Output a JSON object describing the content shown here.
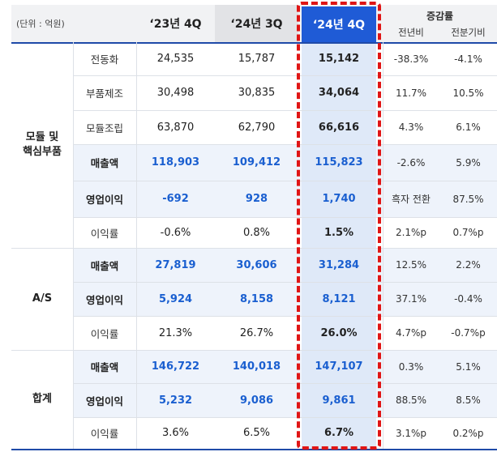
{
  "header": {
    "unit": "(단위 : 억원)",
    "col1": "‘23년 4Q",
    "col2": "‘24년 3Q",
    "col3": "‘24년 4Q",
    "change": "증감률",
    "yoy": "전년비",
    "qoq": "전분기비"
  },
  "groups": [
    {
      "name_line1": "모듈 및",
      "name_line2": "핵심부품",
      "rows": [
        {
          "label": "전동화",
          "v1": "24,535",
          "v2": "15,787",
          "v3": "15,142",
          "yoy": "-38.3%",
          "qoq": "-4.1%"
        },
        {
          "label": "부품제조",
          "v1": "30,498",
          "v2": "30,835",
          "v3": "34,064",
          "yoy": "11.7%",
          "qoq": "10.5%"
        },
        {
          "label": "모듈조립",
          "v1": "63,870",
          "v2": "62,790",
          "v3": "66,616",
          "yoy": "4.3%",
          "qoq": "6.1%"
        },
        {
          "label": "매출액",
          "v1": "118,903",
          "v2": "109,412",
          "v3": "115,823",
          "yoy": "-2.6%",
          "qoq": "5.9%"
        },
        {
          "label": "영업이익",
          "v1": "-692",
          "v2": "928",
          "v3": "1,740",
          "yoy": "흑자 전환",
          "qoq": "87.5%"
        },
        {
          "label": "이익률",
          "v1": "-0.6%",
          "v2": "0.8%",
          "v3": "1.5%",
          "yoy": "2.1%p",
          "qoq": "0.7%p"
        }
      ]
    },
    {
      "name_line1": "A/S",
      "name_line2": "",
      "rows": [
        {
          "label": "매출액",
          "v1": "27,819",
          "v2": "30,606",
          "v3": "31,284",
          "yoy": "12.5%",
          "qoq": "2.2%"
        },
        {
          "label": "영업이익",
          "v1": "5,924",
          "v2": "8,158",
          "v3": "8,121",
          "yoy": "37.1%",
          "qoq": "-0.4%"
        },
        {
          "label": "이익률",
          "v1": "21.3%",
          "v2": "26.7%",
          "v3": "26.0%",
          "yoy": "4.7%p",
          "qoq": "-0.7%p"
        }
      ]
    },
    {
      "name_line1": "합계",
      "name_line2": "",
      "rows": [
        {
          "label": "매출액",
          "v1": "146,722",
          "v2": "140,018",
          "v3": "147,107",
          "yoy": "0.3%",
          "qoq": "5.1%"
        },
        {
          "label": "영업이익",
          "v1": "5,232",
          "v2": "9,086",
          "v3": "9,861",
          "yoy": "88.5%",
          "qoq": "8.5%"
        },
        {
          "label": "이익률",
          "v1": "3.6%",
          "v2": "6.5%",
          "v3": "6.7%",
          "yoy": "3.1%p",
          "qoq": "0.2%p"
        }
      ]
    }
  ],
  "colors": {
    "accent_blue": "#1f5bd6",
    "value_blue": "#1a5fd0",
    "highlight_red": "#e01515",
    "shaded_row": "#eef3fb"
  }
}
